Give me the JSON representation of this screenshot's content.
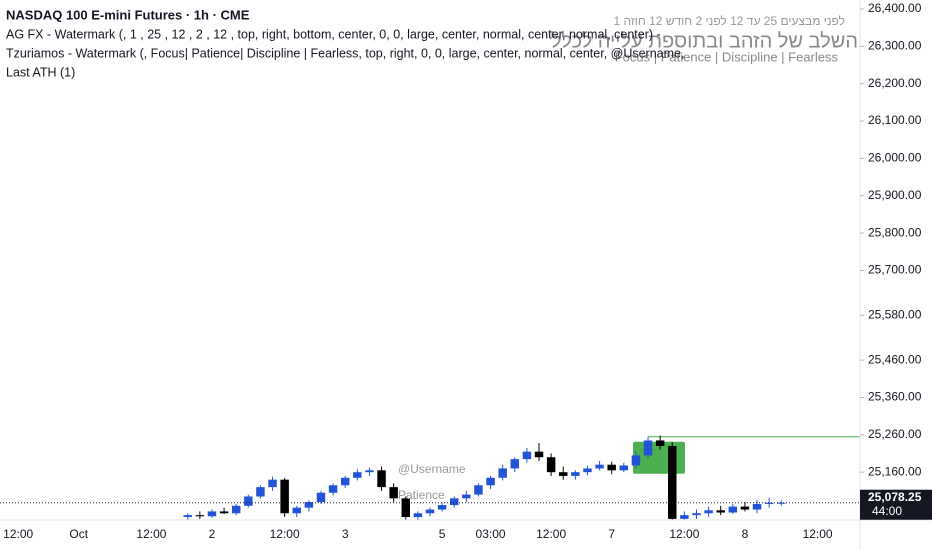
{
  "header": {
    "title": "NASDAQ 100 E-mini Futures · 1h · CME",
    "line2": "AG FX - Watermark (, 1 , 25 , 12 , 2 , 12 , top, right, bottom, center, 0, 0, large, center, normal, center, normal, center) -",
    "line3": "Tzuriamos - Watermark (, Focus| Patience| Discipline | Fearless, top, right, 0, 0, large, center, normal, center, @Username,",
    "line4": "Last ATH (1)"
  },
  "watermarks": {
    "hebrew_small": "1 לפני מבצעים 25 עד 12 לפני 2 חודש 12 חוזה",
    "hebrew_large": "השלב של הזהב ובתוספת עלייה לכלל",
    "motto": "Focus | Patience | Discipline | Fearless",
    "username": "@Username",
    "patience": "Patience"
  },
  "chart_data": {
    "type": "candlestick",
    "categories": [
      null,
      "12:00",
      null,
      null,
      null,
      null,
      "Oct",
      null,
      null,
      null,
      null,
      null,
      "12:00",
      null,
      null,
      null,
      null,
      "2",
      null,
      null,
      null,
      null,
      null,
      "12:00",
      null,
      null,
      null,
      null,
      "3",
      null,
      null,
      null,
      null,
      null,
      null,
      null,
      "5",
      null,
      null,
      null,
      "03:00",
      null,
      null,
      null,
      null,
      "12:00",
      null,
      null,
      null,
      null,
      "7",
      null,
      null,
      null,
      null,
      null,
      "12:00",
      null,
      null,
      null,
      null,
      "8",
      null,
      null,
      null,
      null,
      null,
      "12:00",
      null,
      null,
      null
    ],
    "open": [
      null,
      null,
      null,
      null,
      null,
      null,
      null,
      null,
      null,
      null,
      null,
      null,
      null,
      null,
      null,
      25040,
      25045,
      25042,
      25055,
      25050,
      25070,
      25095,
      25120,
      25140,
      25050,
      25065,
      25080,
      25105,
      25125,
      25145,
      25160,
      25165,
      25120,
      25090,
      25040,
      25050,
      25060,
      25072,
      25090,
      25100,
      25125,
      25145,
      25170,
      25195,
      25215,
      25200,
      25160,
      25150,
      25160,
      25170,
      25180,
      25165,
      25178,
      25205,
      25245,
      25230,
      25035,
      25045,
      25050,
      25058,
      25052,
      25068,
      25060,
      25075,
      25078,
      null,
      null,
      null,
      null,
      null,
      null
    ],
    "high": [
      null,
      null,
      null,
      null,
      null,
      null,
      null,
      null,
      null,
      null,
      null,
      null,
      null,
      null,
      null,
      25050,
      25055,
      25060,
      25065,
      25075,
      25100,
      25125,
      25148,
      25145,
      25070,
      25085,
      25110,
      25130,
      25150,
      25168,
      25172,
      25175,
      25130,
      25095,
      25055,
      25065,
      25078,
      25095,
      25110,
      25130,
      25150,
      25180,
      25200,
      25225,
      25238,
      25210,
      25175,
      25165,
      25178,
      25190,
      25188,
      25185,
      25215,
      25255,
      25258,
      25240,
      25055,
      25060,
      25068,
      25070,
      25075,
      25080,
      25085,
      25092,
      25085,
      null,
      null,
      null,
      null,
      null,
      null
    ],
    "low": [
      null,
      null,
      null,
      null,
      null,
      null,
      null,
      null,
      null,
      null,
      null,
      null,
      null,
      null,
      null,
      25030,
      25035,
      25038,
      25048,
      25045,
      25065,
      25090,
      25110,
      25040,
      25040,
      25055,
      25075,
      25098,
      25118,
      25138,
      25150,
      25110,
      25080,
      25030,
      25030,
      25042,
      25055,
      25065,
      25080,
      25095,
      25115,
      25138,
      25160,
      25185,
      25190,
      25150,
      25140,
      25140,
      25152,
      25165,
      25155,
      25160,
      25170,
      25198,
      25220,
      25020,
      25025,
      25035,
      25040,
      25045,
      25048,
      25055,
      25050,
      25065,
      25070,
      null,
      null,
      null,
      null,
      null,
      null
    ],
    "close": [
      null,
      null,
      null,
      null,
      null,
      null,
      null,
      null,
      null,
      null,
      null,
      null,
      null,
      null,
      null,
      25045,
      25042,
      25055,
      25050,
      25070,
      25095,
      25120,
      25140,
      25050,
      25065,
      25080,
      25105,
      25125,
      25145,
      25160,
      25165,
      25120,
      25090,
      25040,
      25050,
      25060,
      25072,
      25090,
      25100,
      25125,
      25145,
      25170,
      25195,
      25215,
      25200,
      25160,
      25150,
      25160,
      25170,
      25180,
      25165,
      25178,
      25205,
      25245,
      25230,
      25035,
      25045,
      25050,
      25058,
      25052,
      25068,
      25060,
      25075,
      25078,
      25078.25,
      null,
      null,
      null,
      null,
      null,
      null
    ],
    "up_color": "#2454d6",
    "down_color": "#000000",
    "ylim": [
      25032,
      26424
    ],
    "yticks": [
      {
        "value": 26400,
        "label": "26,400.00"
      },
      {
        "value": 26300,
        "label": "26,300.00"
      },
      {
        "value": 26200,
        "label": "26,200.00"
      },
      {
        "value": 26100,
        "label": "26,100.00"
      },
      {
        "value": 26000,
        "label": "26,000.00"
      },
      {
        "value": 25900,
        "label": "25,900.00"
      },
      {
        "value": 25800,
        "label": "25,800.00"
      },
      {
        "value": 25700,
        "label": "25,700.00"
      },
      {
        "value": 25580,
        "label": "25,580.00"
      },
      {
        "value": 25460,
        "label": "25,460.00"
      },
      {
        "value": 25360,
        "label": "25,360.00"
      },
      {
        "value": 25260,
        "label": "25,260.00"
      },
      {
        "value": 25160,
        "label": "25,160.00"
      }
    ],
    "last_price": {
      "value": 25078.25,
      "label": "25,078.25"
    },
    "countdown": "44:00",
    "ath_level": 25255,
    "ath_color": "#4caf50"
  }
}
